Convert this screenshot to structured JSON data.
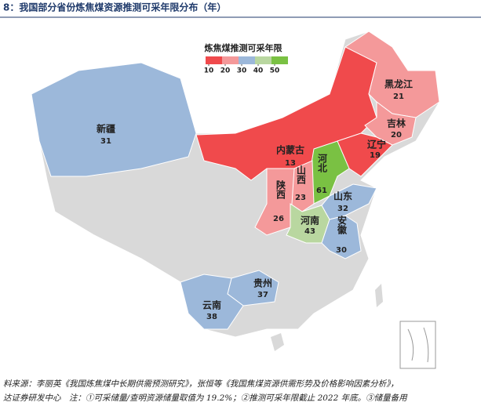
{
  "title": "8：我国部分省份炼焦煤资源推测可采年限分布（年）",
  "legend": {
    "title": "炼焦煤推测可采年限",
    "ticks": [
      10,
      20,
      30,
      40,
      50
    ],
    "colors": [
      "#f04a4c",
      "#f4999a",
      "#9cb8da",
      "#b9d7a0",
      "#7ac143"
    ]
  },
  "provinces": [
    {
      "name": "新疆",
      "value": 31
    },
    {
      "name": "内蒙古",
      "value": 13
    },
    {
      "name": "黑龙江",
      "value": 21
    },
    {
      "name": "吉林",
      "value": 20
    },
    {
      "name": "辽宁",
      "value": 19
    },
    {
      "name": "河北",
      "value": 61
    },
    {
      "name": "山西",
      "value": 23
    },
    {
      "name": "陕西",
      "value": 26
    },
    {
      "name": "河南",
      "value": 43
    },
    {
      "name": "山东",
      "value": 32
    },
    {
      "name": "安徽",
      "value": 30
    },
    {
      "name": "贵州",
      "value": 37
    },
    {
      "name": "云南",
      "value": 38
    }
  ],
  "source": [
    "料来源：李丽英《我国炼焦煤中长期供需预测研究》，张恒等《我国焦煤资源供需形势及价格影响因素分析》，",
    "达证券研发中心　注：①可采储量/查明资源储量取值为 19.2%；②推测可采年限截止 2022 年底。③储量备用"
  ]
}
